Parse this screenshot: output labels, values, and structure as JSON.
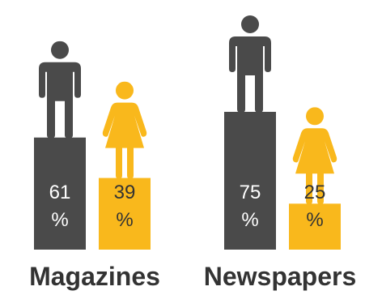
{
  "chart_data": {
    "type": "bar",
    "categories": [
      "Magazines",
      "Newspapers"
    ],
    "series": [
      {
        "name": "",
        "icon": "man-icon",
        "color": "#4a4a4a",
        "values": [
          61,
          75
        ]
      },
      {
        "name": "",
        "icon": "woman-icon",
        "color": "#f9b81c",
        "values": [
          39,
          25
        ]
      }
    ],
    "value_labels": {
      "line1": [
        [
          "61",
          "39"
        ],
        [
          "75",
          "25"
        ]
      ],
      "line2": "%"
    },
    "ylim": [
      0,
      100
    ],
    "title": "",
    "xlabel": "",
    "ylabel": ""
  }
}
